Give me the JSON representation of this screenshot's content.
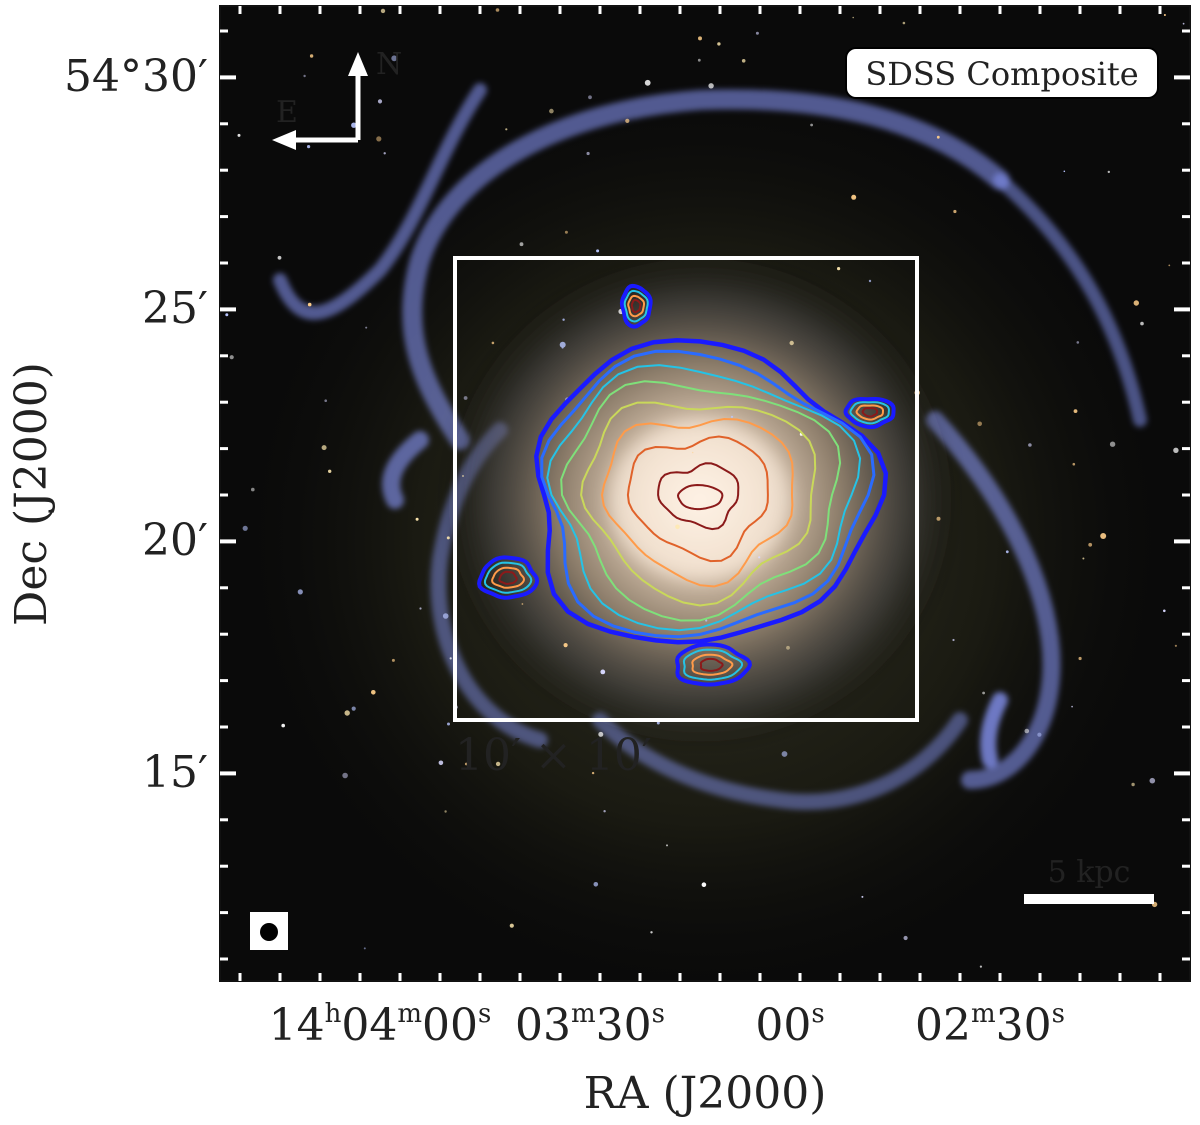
{
  "figure": {
    "panel_label": "SDSS Composite",
    "x_axis_label": "RA (J2000)",
    "y_axis_label": "Dec (J2000)",
    "compass": {
      "north": "N",
      "east": "E"
    },
    "box_label": "10′ × 10′",
    "scale_bar_label": "5 kpc",
    "beam_marker": "beam",
    "x_ticks": [
      {
        "h": "14",
        "hs": "h",
        "m": "04",
        "ms": "m",
        "s": "00",
        "ss": "s"
      },
      {
        "h": "",
        "hs": "",
        "m": "03",
        "ms": "m",
        "s": "30",
        "ss": "s"
      },
      {
        "h": "",
        "hs": "",
        "m": "",
        "ms": "",
        "s": "00",
        "ss": "s"
      },
      {
        "h": "",
        "hs": "",
        "m": "02",
        "ms": "m",
        "s": "30",
        "ss": "s"
      }
    ],
    "y_ticks": [
      "54°30′",
      "25′",
      "20′",
      "15′"
    ],
    "contour_colors": [
      "#1a1aff",
      "#2a6bff",
      "#25c3e6",
      "#7fe07a",
      "#c9d85a",
      "#ff9b4a",
      "#e0622a",
      "#8b1a1a"
    ],
    "sky_color": "#0a0a0a",
    "arm_color": "#8c9bff",
    "bulge_color": "#f4e6d2"
  }
}
